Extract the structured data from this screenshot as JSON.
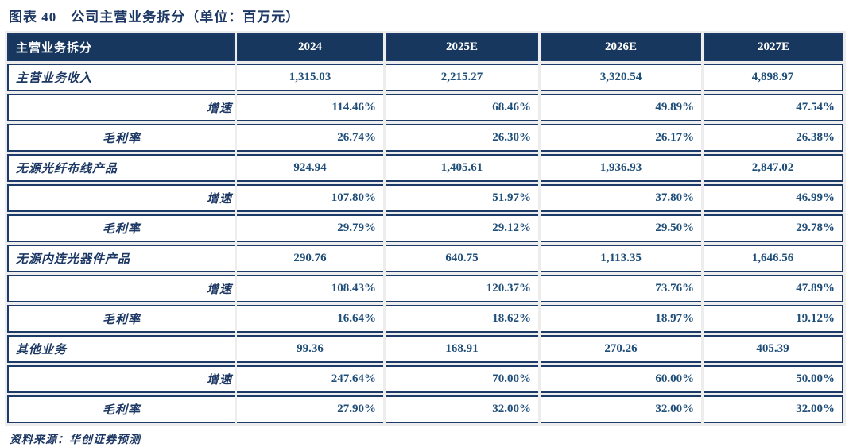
{
  "title": "图表 40　公司主营业务拆分（单位：百万元）",
  "colors": {
    "header_bg": "#17375E",
    "border": "#1C3B68",
    "title_text": "#1D3864",
    "value_text": "#1F4E79",
    "gap": "#EDEDED"
  },
  "table": {
    "header": [
      "主营业务拆分",
      "2024",
      "2025E",
      "2026E",
      "2027E"
    ],
    "rows": [
      {
        "type": "main",
        "label": "主营业务收入",
        "values": [
          "1,315.03",
          "2,215.27",
          "3,320.54",
          "4,898.97"
        ]
      },
      {
        "type": "growth",
        "label": "增速",
        "values": [
          "114.46%",
          "68.46%",
          "49.89%",
          "47.54%"
        ]
      },
      {
        "type": "margin",
        "label": "毛利率",
        "values": [
          "26.74%",
          "26.30%",
          "26.17%",
          "26.38%"
        ]
      },
      {
        "type": "main",
        "label": "无源光纤布线产品",
        "values": [
          "924.94",
          "1,405.61",
          "1,936.93",
          "2,847.02"
        ]
      },
      {
        "type": "growth",
        "label": "增速",
        "values": [
          "107.80%",
          "51.97%",
          "37.80%",
          "46.99%"
        ]
      },
      {
        "type": "margin",
        "label": "毛利率",
        "values": [
          "29.79%",
          "29.12%",
          "29.50%",
          "29.78%"
        ]
      },
      {
        "type": "main",
        "label": "无源内连光器件产品",
        "values": [
          "290.76",
          "640.75",
          "1,113.35",
          "1,646.56"
        ]
      },
      {
        "type": "growth",
        "label": "增速",
        "values": [
          "108.43%",
          "120.37%",
          "73.76%",
          "47.89%"
        ]
      },
      {
        "type": "margin",
        "label": "毛利率",
        "values": [
          "16.64%",
          "18.62%",
          "18.97%",
          "19.12%"
        ]
      },
      {
        "type": "main",
        "label": "其他业务",
        "values": [
          "99.36",
          "168.91",
          "270.26",
          "405.39"
        ]
      },
      {
        "type": "growth",
        "label": "增速",
        "values": [
          "247.64%",
          "70.00%",
          "60.00%",
          "50.00%"
        ]
      },
      {
        "type": "margin",
        "label": "毛利率",
        "values": [
          "27.90%",
          "32.00%",
          "32.00%",
          "32.00%"
        ]
      }
    ]
  },
  "footer": {
    "source": "资料来源：华创证券预测"
  }
}
